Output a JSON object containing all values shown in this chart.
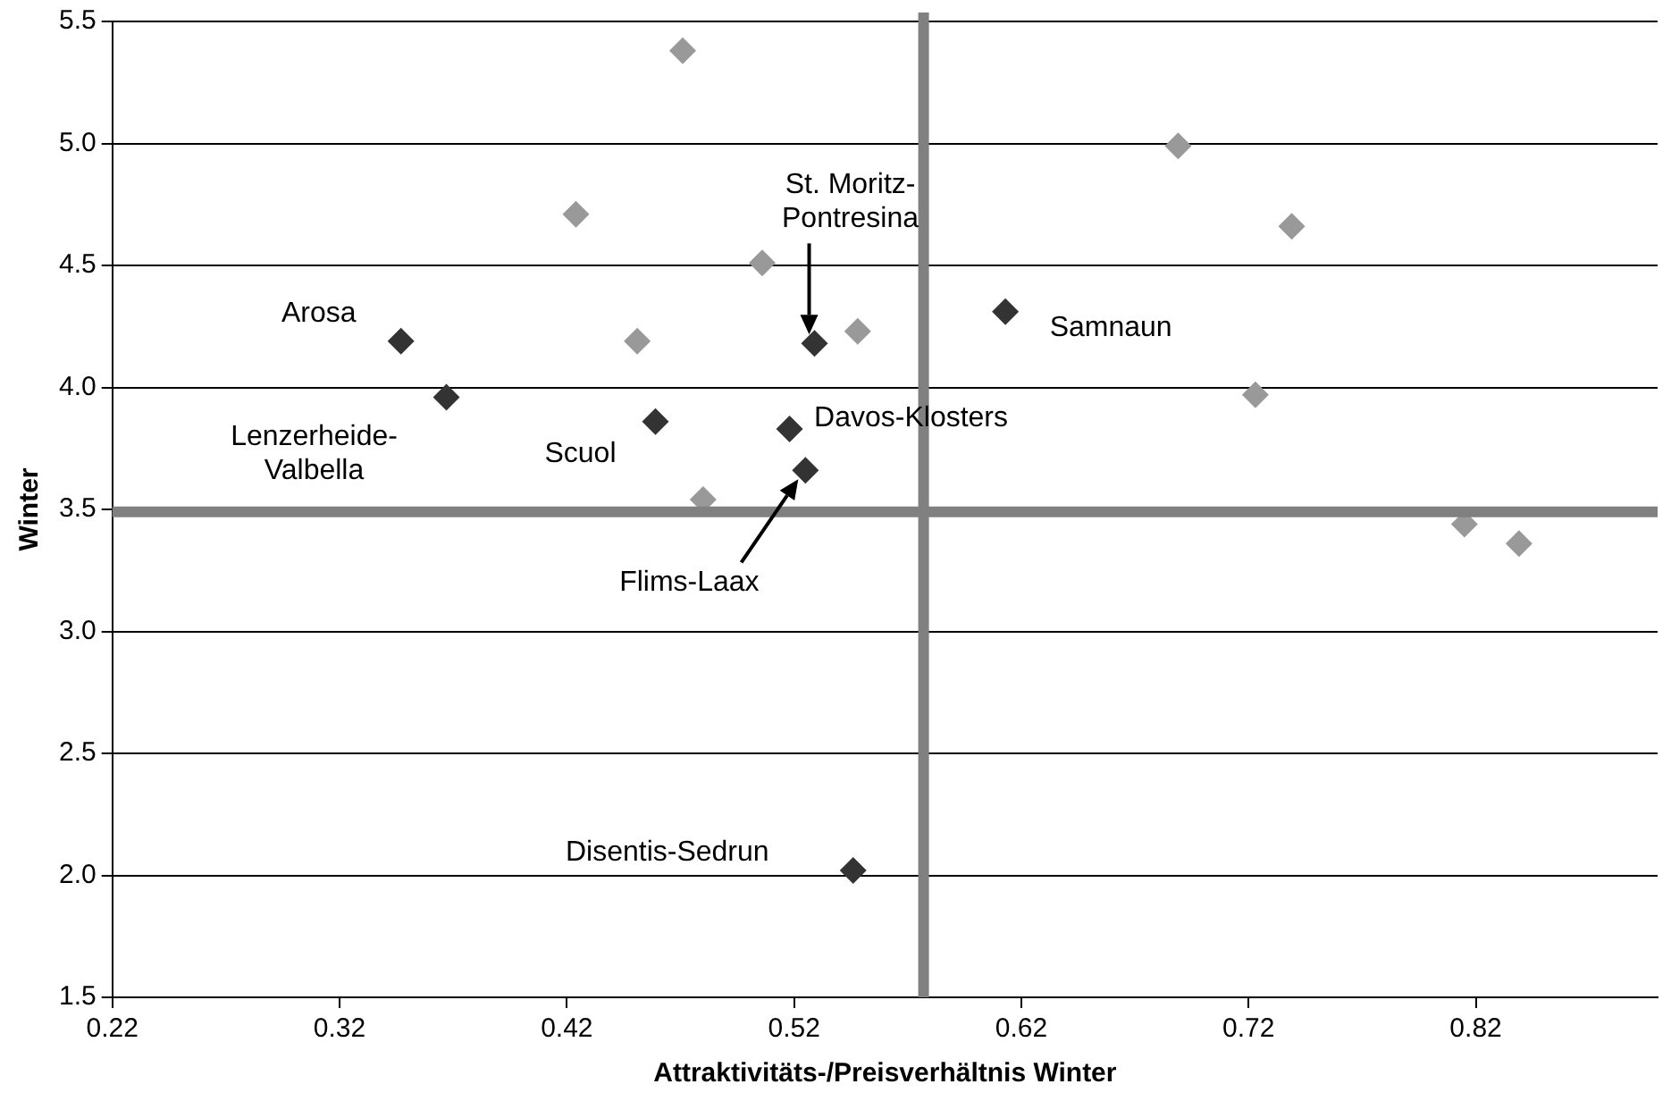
{
  "chart_data": {
    "type": "scatter",
    "xlabel": "Attraktivitäts-/Preisverhältnis Winter",
    "ylabel": "Winter",
    "xlim": [
      0.22,
      0.9
    ],
    "xticks": [
      0.22,
      0.32,
      0.42,
      0.52,
      0.62,
      0.72,
      0.82
    ],
    "ylim": [
      1.5,
      5.5
    ],
    "yticks": [
      1.5,
      {
        "value": 2,
        "label": "2.0"
      },
      2.5,
      {
        "value": 3,
        "label": "3.0"
      },
      3.5,
      {
        "value": 4,
        "label": "4.0"
      },
      4.5,
      {
        "value": 5,
        "label": "5.0"
      },
      5.5
    ],
    "grid": "y",
    "legend": false,
    "marker": "diamond",
    "series": [
      {
        "color": "#333333",
        "x": [
          0.347,
          0.367,
          0.459,
          0.518,
          0.525,
          0.529,
          0.613,
          0.546
        ],
        "values": [
          4.19,
          3.96,
          3.86,
          3.83,
          3.66,
          4.18,
          4.31,
          2.02
        ]
      },
      {
        "color": "#999999",
        "x": [
          0.471,
          0.424,
          0.506,
          0.451,
          0.48,
          0.548,
          0.689,
          0.739,
          0.723,
          0.815,
          0.839
        ],
        "values": [
          5.38,
          4.71,
          4.51,
          4.19,
          3.54,
          4.23,
          4.99,
          4.66,
          3.97,
          3.44,
          3.36
        ]
      }
    ],
    "ref_lines": [
      {
        "axis": "x",
        "value": 0.577,
        "color": "#808080"
      },
      {
        "axis": "y",
        "value": 3.49,
        "color": "#808080"
      }
    ],
    "annotations": [
      {
        "text": "Arosa",
        "x": 0.347,
        "y": 4.19
      },
      {
        "text": "Lenzerheide-\nValbella",
        "x": 0.367,
        "y": 3.96
      },
      {
        "text": "Scuol",
        "x": 0.459,
        "y": 3.86
      },
      "St. Moritz-\nPontresina",
      {
        "text": "Davos-Klosters",
        "x": 0.518,
        "y": 3.83
      },
      {
        "text": "Samnaun",
        "x": 0.613,
        "y": 4.31
      },
      "Flims-Laax",
      {
        "text": "Disentis-Sedrun",
        "x": 0.546,
        "y": 2.02
      }
    ]
  }
}
